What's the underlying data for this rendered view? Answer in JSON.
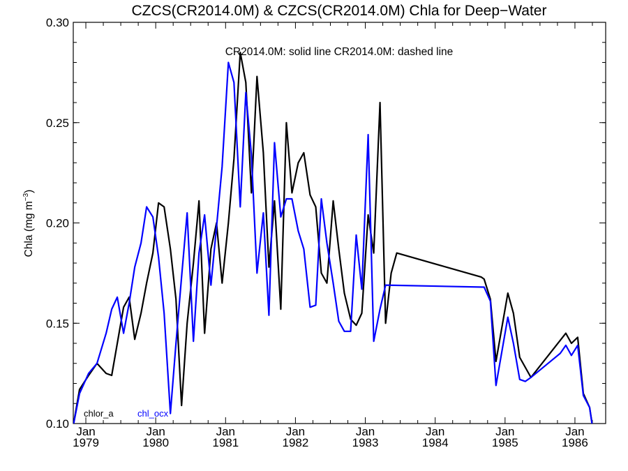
{
  "chart_data": {
    "type": "line",
    "title": "CZCS(CR2014.0M) & CZCS(CR2014.0M)  Chla for Deep−Water",
    "annotation": "CR2014.0M: solid line   CR2014.0M: dashed line",
    "ylabel_main": "Chla (mg m",
    "ylabel_sup": "−3",
    "ylabel_close": ")",
    "xlim": [
      1978.82,
      1986.44
    ],
    "ylim": [
      0.1,
      0.3
    ],
    "x_ticks": [
      {
        "x": 1979.0,
        "month": "Jan",
        "year": "1979"
      },
      {
        "x": 1980.0,
        "month": "Jan",
        "year": "1980"
      },
      {
        "x": 1981.0,
        "month": "Jan",
        "year": "1981"
      },
      {
        "x": 1982.0,
        "month": "Jan",
        "year": "1982"
      },
      {
        "x": 1983.0,
        "month": "Jan",
        "year": "1983"
      },
      {
        "x": 1984.0,
        "month": "Jan",
        "year": "1984"
      },
      {
        "x": 1985.0,
        "month": "Jan",
        "year": "1985"
      },
      {
        "x": 1986.0,
        "month": "Jan",
        "year": "1986"
      }
    ],
    "y_ticks": [
      {
        "value": 0.1,
        "label": "0.10"
      },
      {
        "value": 0.15,
        "label": "0.15"
      },
      {
        "value": 0.2,
        "label": "0.20"
      },
      {
        "value": 0.25,
        "label": "0.25"
      },
      {
        "value": 0.3,
        "label": "0.30"
      }
    ],
    "series": [
      {
        "name": "chlor_a",
        "color": "#000000",
        "points": [
          [
            1978.82,
            0.099
          ],
          [
            1978.91,
            0.117
          ],
          [
            1979.04,
            0.124
          ],
          [
            1979.16,
            0.13
          ],
          [
            1979.29,
            0.125
          ],
          [
            1979.37,
            0.124
          ],
          [
            1979.45,
            0.14
          ],
          [
            1979.54,
            0.158
          ],
          [
            1979.62,
            0.163
          ],
          [
            1979.7,
            0.142
          ],
          [
            1979.79,
            0.155
          ],
          [
            1979.87,
            0.17
          ],
          [
            1979.96,
            0.185
          ],
          [
            1980.04,
            0.21
          ],
          [
            1980.12,
            0.208
          ],
          [
            1980.21,
            0.187
          ],
          [
            1980.29,
            0.162
          ],
          [
            1980.37,
            0.109
          ],
          [
            1980.45,
            0.15
          ],
          [
            1980.54,
            0.18
          ],
          [
            1980.62,
            0.211
          ],
          [
            1980.7,
            0.145
          ],
          [
            1980.79,
            0.187
          ],
          [
            1980.87,
            0.2
          ],
          [
            1980.95,
            0.17
          ],
          [
            1981.04,
            0.2
          ],
          [
            1981.12,
            0.232
          ],
          [
            1981.21,
            0.285
          ],
          [
            1981.29,
            0.27
          ],
          [
            1981.37,
            0.215
          ],
          [
            1981.45,
            0.273
          ],
          [
            1981.54,
            0.235
          ],
          [
            1981.62,
            0.178
          ],
          [
            1981.7,
            0.211
          ],
          [
            1981.79,
            0.157
          ],
          [
            1981.87,
            0.25
          ],
          [
            1981.95,
            0.215
          ],
          [
            1982.04,
            0.23
          ],
          [
            1982.12,
            0.235
          ],
          [
            1982.21,
            0.214
          ],
          [
            1982.29,
            0.208
          ],
          [
            1982.37,
            0.175
          ],
          [
            1982.45,
            0.17
          ],
          [
            1982.54,
            0.211
          ],
          [
            1982.62,
            0.187
          ],
          [
            1982.7,
            0.165
          ],
          [
            1982.79,
            0.152
          ],
          [
            1982.87,
            0.149
          ],
          [
            1982.95,
            0.155
          ],
          [
            1983.04,
            0.204
          ],
          [
            1983.12,
            0.185
          ],
          [
            1983.21,
            0.26
          ],
          [
            1983.29,
            0.15
          ],
          [
            1983.37,
            0.175
          ],
          [
            1983.45,
            0.185
          ],
          [
            1984.66,
            0.173
          ],
          [
            1984.7,
            0.172
          ],
          [
            1984.79,
            0.162
          ],
          [
            1984.87,
            0.131
          ],
          [
            1985.04,
            0.165
          ],
          [
            1985.12,
            0.155
          ],
          [
            1985.21,
            0.133
          ],
          [
            1985.37,
            0.123
          ],
          [
            1985.87,
            0.145
          ],
          [
            1985.95,
            0.14
          ],
          [
            1986.04,
            0.143
          ],
          [
            1986.12,
            0.115
          ],
          [
            1986.21,
            0.108
          ],
          [
            1986.29,
            0.09
          ]
        ]
      },
      {
        "name": "chl_ocx",
        "color": "#0000ff",
        "points": [
          [
            1978.82,
            0.099
          ],
          [
            1978.91,
            0.115
          ],
          [
            1979.04,
            0.125
          ],
          [
            1979.16,
            0.13
          ],
          [
            1979.29,
            0.145
          ],
          [
            1979.37,
            0.157
          ],
          [
            1979.45,
            0.163
          ],
          [
            1979.54,
            0.145
          ],
          [
            1979.62,
            0.16
          ],
          [
            1979.7,
            0.178
          ],
          [
            1979.79,
            0.19
          ],
          [
            1979.87,
            0.208
          ],
          [
            1979.96,
            0.203
          ],
          [
            1980.04,
            0.183
          ],
          [
            1980.12,
            0.155
          ],
          [
            1980.21,
            0.105
          ],
          [
            1980.29,
            0.14
          ],
          [
            1980.37,
            0.173
          ],
          [
            1980.45,
            0.205
          ],
          [
            1980.54,
            0.141
          ],
          [
            1980.62,
            0.185
          ],
          [
            1980.7,
            0.204
          ],
          [
            1980.79,
            0.169
          ],
          [
            1980.87,
            0.198
          ],
          [
            1980.95,
            0.228
          ],
          [
            1981.04,
            0.28
          ],
          [
            1981.12,
            0.27
          ],
          [
            1981.21,
            0.208
          ],
          [
            1981.29,
            0.265
          ],
          [
            1981.37,
            0.234
          ],
          [
            1981.45,
            0.175
          ],
          [
            1981.54,
            0.205
          ],
          [
            1981.62,
            0.154
          ],
          [
            1981.7,
            0.24
          ],
          [
            1981.79,
            0.203
          ],
          [
            1981.87,
            0.212
          ],
          [
            1981.95,
            0.212
          ],
          [
            1982.04,
            0.196
          ],
          [
            1982.12,
            0.187
          ],
          [
            1982.21,
            0.158
          ],
          [
            1982.29,
            0.159
          ],
          [
            1982.37,
            0.212
          ],
          [
            1982.45,
            0.19
          ],
          [
            1982.54,
            0.17
          ],
          [
            1982.62,
            0.151
          ],
          [
            1982.7,
            0.146
          ],
          [
            1982.79,
            0.146
          ],
          [
            1982.87,
            0.194
          ],
          [
            1982.95,
            0.167
          ],
          [
            1983.04,
            0.244
          ],
          [
            1983.12,
            0.141
          ],
          [
            1983.21,
            0.157
          ],
          [
            1983.29,
            0.169
          ],
          [
            1984.7,
            0.168
          ],
          [
            1984.79,
            0.161
          ],
          [
            1984.87,
            0.119
          ],
          [
            1985.04,
            0.153
          ],
          [
            1985.12,
            0.14
          ],
          [
            1985.21,
            0.122
          ],
          [
            1985.29,
            0.121
          ],
          [
            1985.37,
            0.123
          ],
          [
            1985.79,
            0.135
          ],
          [
            1985.87,
            0.139
          ],
          [
            1985.95,
            0.134
          ],
          [
            1986.04,
            0.139
          ],
          [
            1986.12,
            0.114
          ],
          [
            1986.21,
            0.108
          ],
          [
            1986.29,
            0.089
          ]
        ]
      }
    ]
  }
}
